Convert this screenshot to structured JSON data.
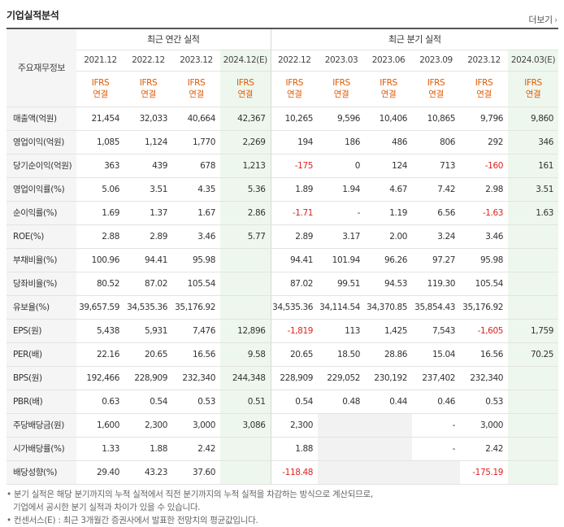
{
  "header": {
    "title": "기업실적분석",
    "more_label": "더보기",
    "more_icon": "chevron-right-icon"
  },
  "table": {
    "corner_label": "주요재무정보",
    "groups": [
      {
        "label": "최근 연간 실적"
      },
      {
        "label": "최근 분기 실적"
      }
    ],
    "periods": [
      "2021.12",
      "2022.12",
      "2023.12",
      "2024.12(E)",
      "2022.12",
      "2023.03",
      "2023.06",
      "2023.09",
      "2023.12",
      "2024.03(E)"
    ],
    "ifrs_line1": "IFRS",
    "ifrs_line2": "연결",
    "rows": [
      {
        "label": "매출액(억원)",
        "values": [
          "21,454",
          "32,033",
          "40,664",
          "42,367",
          "10,265",
          "9,596",
          "10,406",
          "10,865",
          "9,796",
          "9,860"
        ]
      },
      {
        "label": "영업이익(억원)",
        "values": [
          "1,085",
          "1,124",
          "1,770",
          "2,269",
          "194",
          "186",
          "486",
          "806",
          "292",
          "346"
        ]
      },
      {
        "label": "당기순이익(억원)",
        "values": [
          "363",
          "439",
          "678",
          "1,213",
          "-175",
          "0",
          "124",
          "713",
          "-160",
          "161"
        ]
      },
      {
        "label": "영업이익률(%)",
        "values": [
          "5.06",
          "3.51",
          "4.35",
          "5.36",
          "1.89",
          "1.94",
          "4.67",
          "7.42",
          "2.98",
          "3.51"
        ]
      },
      {
        "label": "순이익률(%)",
        "values": [
          "1.69",
          "1.37",
          "1.67",
          "2.86",
          "-1.71",
          "-",
          "1.19",
          "6.56",
          "-1.63",
          "1.63"
        ]
      },
      {
        "label": "ROE(%)",
        "values": [
          "2.88",
          "2.89",
          "3.46",
          "5.77",
          "2.89",
          "3.17",
          "2.00",
          "3.24",
          "3.46",
          ""
        ]
      },
      {
        "label": "부채비율(%)",
        "values": [
          "100.96",
          "94.41",
          "95.98",
          "",
          "94.41",
          "101.94",
          "96.26",
          "97.27",
          "95.98",
          ""
        ]
      },
      {
        "label": "당좌비율(%)",
        "values": [
          "80.52",
          "87.02",
          "105.54",
          "",
          "87.02",
          "99.51",
          "94.53",
          "119.30",
          "105.54",
          ""
        ]
      },
      {
        "label": "유보율(%)",
        "values": [
          "39,657.59",
          "34,535.36",
          "35,176.92",
          "",
          "34,535.36",
          "34,114.54",
          "34,370.85",
          "35,854.43",
          "35,176.92",
          ""
        ]
      },
      {
        "label": "EPS(원)",
        "values": [
          "5,438",
          "5,931",
          "7,476",
          "12,896",
          "-1,819",
          "113",
          "1,425",
          "7,543",
          "-1,605",
          "1,759"
        ]
      },
      {
        "label": "PER(배)",
        "values": [
          "22.16",
          "20.65",
          "16.56",
          "9.58",
          "20.65",
          "18.50",
          "28.86",
          "15.04",
          "16.56",
          "70.25"
        ]
      },
      {
        "label": "BPS(원)",
        "values": [
          "192,466",
          "228,909",
          "232,340",
          "244,348",
          "228,909",
          "229,052",
          "230,192",
          "237,402",
          "232,340",
          ""
        ]
      },
      {
        "label": "PBR(배)",
        "values": [
          "0.63",
          "0.54",
          "0.53",
          "0.51",
          "0.54",
          "0.48",
          "0.44",
          "0.46",
          "0.53",
          ""
        ]
      },
      {
        "label": "주당배당금(원)",
        "values": [
          "1,600",
          "2,300",
          "3,000",
          "3,086",
          "2,300",
          "",
          "",
          "-",
          "3,000",
          ""
        ]
      },
      {
        "label": "시가배당률(%)",
        "values": [
          "1.33",
          "1.88",
          "2.42",
          "",
          "1.88",
          "",
          "",
          "-",
          "2.42",
          ""
        ]
      },
      {
        "label": "배당성향(%)",
        "values": [
          "29.40",
          "43.23",
          "37.60",
          "",
          "-118.48",
          "",
          "",
          "",
          "-175.19",
          ""
        ]
      }
    ]
  },
  "notes": {
    "line1": "• 분기 실적은 해당 분기까지의 누적 실적에서 직전 분기까지의 누적 실적을 차감하는 방식으로 계산되므로,",
    "line2": "기업에서 공시한 분기 실적과 차이가 있을 수 있습니다.",
    "line3": "• 컨센서스(E) : 최근 3개월간 증권사에서 발표한 전망치의 평균값입니다."
  },
  "colors": {
    "ifrs": "#e05a00",
    "negative": "#e02020",
    "estimate_bg": "#eef7ee",
    "label_bg": "#f5f5f5",
    "empty_bg": "#f2f2f2"
  }
}
